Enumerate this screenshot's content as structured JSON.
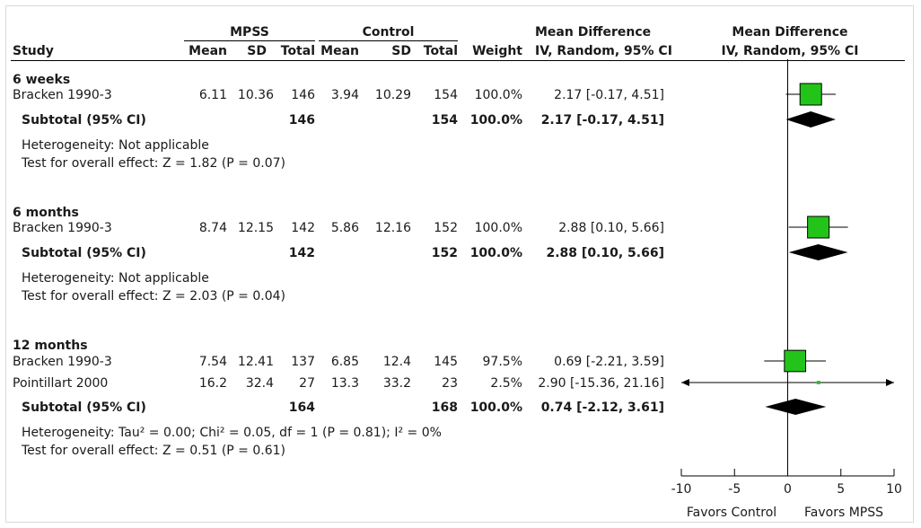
{
  "header": {
    "group1": "MPSS",
    "group2": "Control",
    "diff_line1": "Mean Difference",
    "diff_line2": "IV, Random, 95% CI",
    "plot_line1": "Mean Difference",
    "plot_line2": "IV, Random, 95% CI",
    "cols": {
      "study": "Study",
      "mean1": "Mean",
      "sd1": "SD",
      "total1": "Total",
      "mean2": "Mean",
      "sd2": "SD",
      "total2": "Total",
      "weight": "Weight"
    }
  },
  "groups": [
    {
      "title": "6 weeks",
      "studies": [
        {
          "study": "Bracken 1990-3",
          "mean1": "6.11",
          "sd1": "10.36",
          "total1": "146",
          "mean2": "3.94",
          "sd2": "10.29",
          "total2": "154",
          "weight": "100.0%",
          "ci": "2.17 [-0.17, 4.51]"
        }
      ],
      "subtotal": {
        "label": "Subtotal (95% CI)",
        "total1": "146",
        "total2": "154",
        "weight": "100.0%",
        "ci": "2.17 [-0.17, 4.51]"
      },
      "heterogeneity": "Heterogeneity: Not applicable",
      "overall": "Test for overall effect: Z = 1.82 (P = 0.07)"
    },
    {
      "title": "6 months",
      "studies": [
        {
          "study": "Bracken 1990-3",
          "mean1": "8.74",
          "sd1": "12.15",
          "total1": "142",
          "mean2": "5.86",
          "sd2": "12.16",
          "total2": "152",
          "weight": "100.0%",
          "ci": "2.88 [0.10, 5.66]"
        }
      ],
      "subtotal": {
        "label": "Subtotal (95% CI)",
        "total1": "142",
        "total2": "152",
        "weight": "100.0%",
        "ci": "2.88 [0.10, 5.66]"
      },
      "heterogeneity": "Heterogeneity: Not applicable",
      "overall": "Test for overall effect: Z = 2.03 (P = 0.04)"
    },
    {
      "title": "12 months",
      "studies": [
        {
          "study": "Bracken 1990-3",
          "mean1": "7.54",
          "sd1": "12.41",
          "total1": "137",
          "mean2": "6.85",
          "sd2": "12.4",
          "total2": "145",
          "weight": "97.5%",
          "ci": "0.69 [-2.21, 3.59]"
        },
        {
          "study": "Pointillart 2000",
          "mean1": "16.2",
          "sd1": "32.4",
          "total1": "27",
          "mean2": "13.3",
          "sd2": "33.2",
          "total2": "23",
          "weight": "2.5%",
          "ci": "2.90 [-15.36, 21.16]"
        }
      ],
      "subtotal": {
        "label": "Subtotal (95% CI)",
        "total1": "164",
        "total2": "168",
        "weight": "100.0%",
        "ci": "0.74 [-2.12, 3.61]"
      },
      "heterogeneity": "Heterogeneity: Tau² = 0.00; Chi² = 0.05, df = 1 (P = 0.81); I² = 0%",
      "overall": "Test for overall effect: Z = 0.51 (P = 0.61)"
    }
  ],
  "axis": {
    "favors_left": "Favors Control",
    "favors_right": "Favors MPSS"
  },
  "colors": {
    "marker": "#22c41a",
    "diamond": "#000000"
  },
  "chart_data": {
    "type": "forest",
    "xlim": [
      -10,
      10
    ],
    "xticks": [
      -10,
      -5,
      0,
      5,
      10
    ],
    "studies": [
      {
        "group": "6 weeks",
        "name": "Bracken 1990-3",
        "md": 2.17,
        "lo": -0.17,
        "hi": 4.51,
        "weight": 100.0
      },
      {
        "group": "6 months",
        "name": "Bracken 1990-3",
        "md": 2.88,
        "lo": 0.1,
        "hi": 5.66,
        "weight": 100.0
      },
      {
        "group": "12 months",
        "name": "Bracken 1990-3",
        "md": 0.69,
        "lo": -2.21,
        "hi": 3.59,
        "weight": 97.5
      },
      {
        "group": "12 months",
        "name": "Pointillart 2000",
        "md": 2.9,
        "lo": -15.36,
        "hi": 21.16,
        "weight": 2.5
      }
    ],
    "subtotals": [
      {
        "group": "6 weeks",
        "md": 2.17,
        "lo": -0.17,
        "hi": 4.51
      },
      {
        "group": "6 months",
        "md": 2.88,
        "lo": 0.1,
        "hi": 5.66
      },
      {
        "group": "12 months",
        "md": 0.74,
        "lo": -2.12,
        "hi": 3.61
      }
    ]
  }
}
